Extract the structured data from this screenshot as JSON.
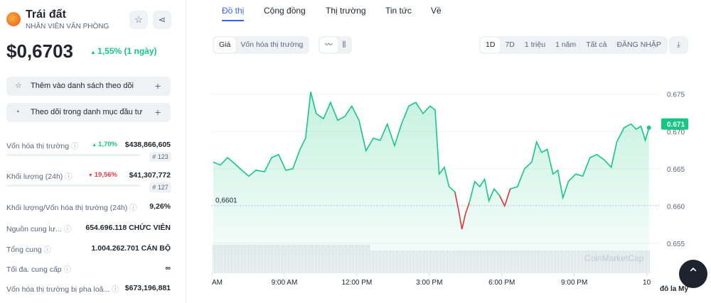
{
  "header": {
    "name": "Trái đất",
    "subtitle": "NHÂN VIÊN VĂN PHÒNG",
    "price": "$0,6703",
    "change": "1,55% (1 ngày)"
  },
  "actions": [
    "Thêm vào danh sách theo dõi",
    "Theo dõi trong danh mục đầu tư"
  ],
  "stats": [
    {
      "label": "Vốn hóa thị trường",
      "change": "1,70%",
      "direction": "up",
      "value": "$438,866,605",
      "rank": "# 123"
    },
    {
      "label": "Khối lượng (24h)",
      "change": "19,56%",
      "direction": "down",
      "value": "$41,307,772",
      "rank": "# 127"
    },
    {
      "label": "Khối lượng/Vốn hóa thị trường (24h)",
      "value": "9,26%"
    },
    {
      "label": "Nguồn cung lư...",
      "value": "654.696.118 CHỨC VIÊN"
    },
    {
      "label": "Tổng cung",
      "value": "1.004.262.701 CÁN BỘ"
    },
    {
      "label": "Tối đa. cung cấp",
      "value": "∞"
    },
    {
      "label": "Vốn hóa thị trường bị pha loã...",
      "value": "$673,196,881"
    }
  ],
  "tabs": [
    "Đồ thị",
    "Cộng đồng",
    "Thị trường",
    "Tin tức",
    "Về"
  ],
  "chart_toggle": [
    "Giá",
    "Vốn hóa thị trường"
  ],
  "ranges": [
    "1D",
    "7D",
    "1 triệu",
    "1 năm",
    "Tất cả",
    "ĐĂNG NHẬP"
  ],
  "currency": "đô la Mỹ",
  "chart_data": {
    "type": "line",
    "watermark": "CoinMarketCap",
    "x": [
      6.06,
      6.35,
      6.65,
      6.94,
      7.24,
      7.53,
      7.82,
      8.18,
      8.47,
      8.76,
      9.06,
      9.35,
      9.65,
      9.88,
      10.09,
      10.32,
      10.62,
      10.91,
      11.21,
      11.5,
      11.79,
      12.09,
      12.38,
      12.68,
      12.97,
      13.26,
      13.56,
      13.85,
      14.15,
      14.44,
      14.74,
      15.03,
      15.24,
      15.41,
      15.62,
      15.82,
      16.06,
      16.21,
      16.35,
      16.5,
      16.65,
      16.88,
      17.09,
      17.29,
      17.47,
      17.68,
      17.91,
      18.12,
      18.35,
      18.65,
      18.94,
      19.24,
      19.44,
      19.65,
      19.88,
      20.12,
      20.32,
      20.53,
      20.76,
      21.06,
      21.35,
      21.65,
      21.94,
      22.24,
      22.53,
      22.76,
      23.06,
      23.35,
      23.56,
      23.76,
      23.94,
      24.09
    ],
    "values": [
      0.6659,
      0.6655,
      0.6665,
      0.6657,
      0.6648,
      0.664,
      0.6648,
      0.6646,
      0.6665,
      0.6669,
      0.6648,
      0.665,
      0.6676,
      0.6691,
      0.6753,
      0.6724,
      0.6717,
      0.6739,
      0.6715,
      0.672,
      0.6734,
      0.6715,
      0.6674,
      0.6691,
      0.6688,
      0.671,
      0.6681,
      0.671,
      0.6734,
      0.6739,
      0.6724,
      0.6734,
      0.6729,
      0.6643,
      0.6652,
      0.6626,
      0.6619,
      0.6595,
      0.6569,
      0.659,
      0.6604,
      0.6633,
      0.6626,
      0.6636,
      0.6607,
      0.6623,
      0.6614,
      0.66,
      0.6623,
      0.6626,
      0.665,
      0.6659,
      0.6686,
      0.6672,
      0.6676,
      0.6643,
      0.6648,
      0.6611,
      0.6633,
      0.6643,
      0.664,
      0.6665,
      0.6669,
      0.6662,
      0.6652,
      0.6686,
      0.6705,
      0.671,
      0.6703,
      0.6707,
      0.6688,
      0.6705
    ],
    "color": "#16c784",
    "below_color": "#ea3943",
    "reference_line": {
      "value": 0.6601,
      "label": "0,6601"
    },
    "current_label": {
      "value": 0.671,
      "label": "0.671"
    },
    "xlim": [
      6,
      24.6
    ],
    "ylim": [
      0.651,
      0.6783
    ],
    "xticks": [
      {
        "value": 6,
        "label": "AM"
      },
      {
        "value": 9,
        "label": "9:00 AM"
      },
      {
        "value": 12,
        "label": "12:00 PM"
      },
      {
        "value": 15,
        "label": "3:00 PM"
      },
      {
        "value": 18,
        "label": "6:00 PM"
      },
      {
        "value": 21,
        "label": "9:00 PM"
      },
      {
        "value": 24,
        "label": "10"
      }
    ],
    "yticks": [
      0.655,
      {
        "value": 0.66,
        "label": "0.660"
      },
      0.665,
      {
        "value": 0.67,
        "label": "0.670"
      },
      0.675
    ],
    "grid": true
  }
}
